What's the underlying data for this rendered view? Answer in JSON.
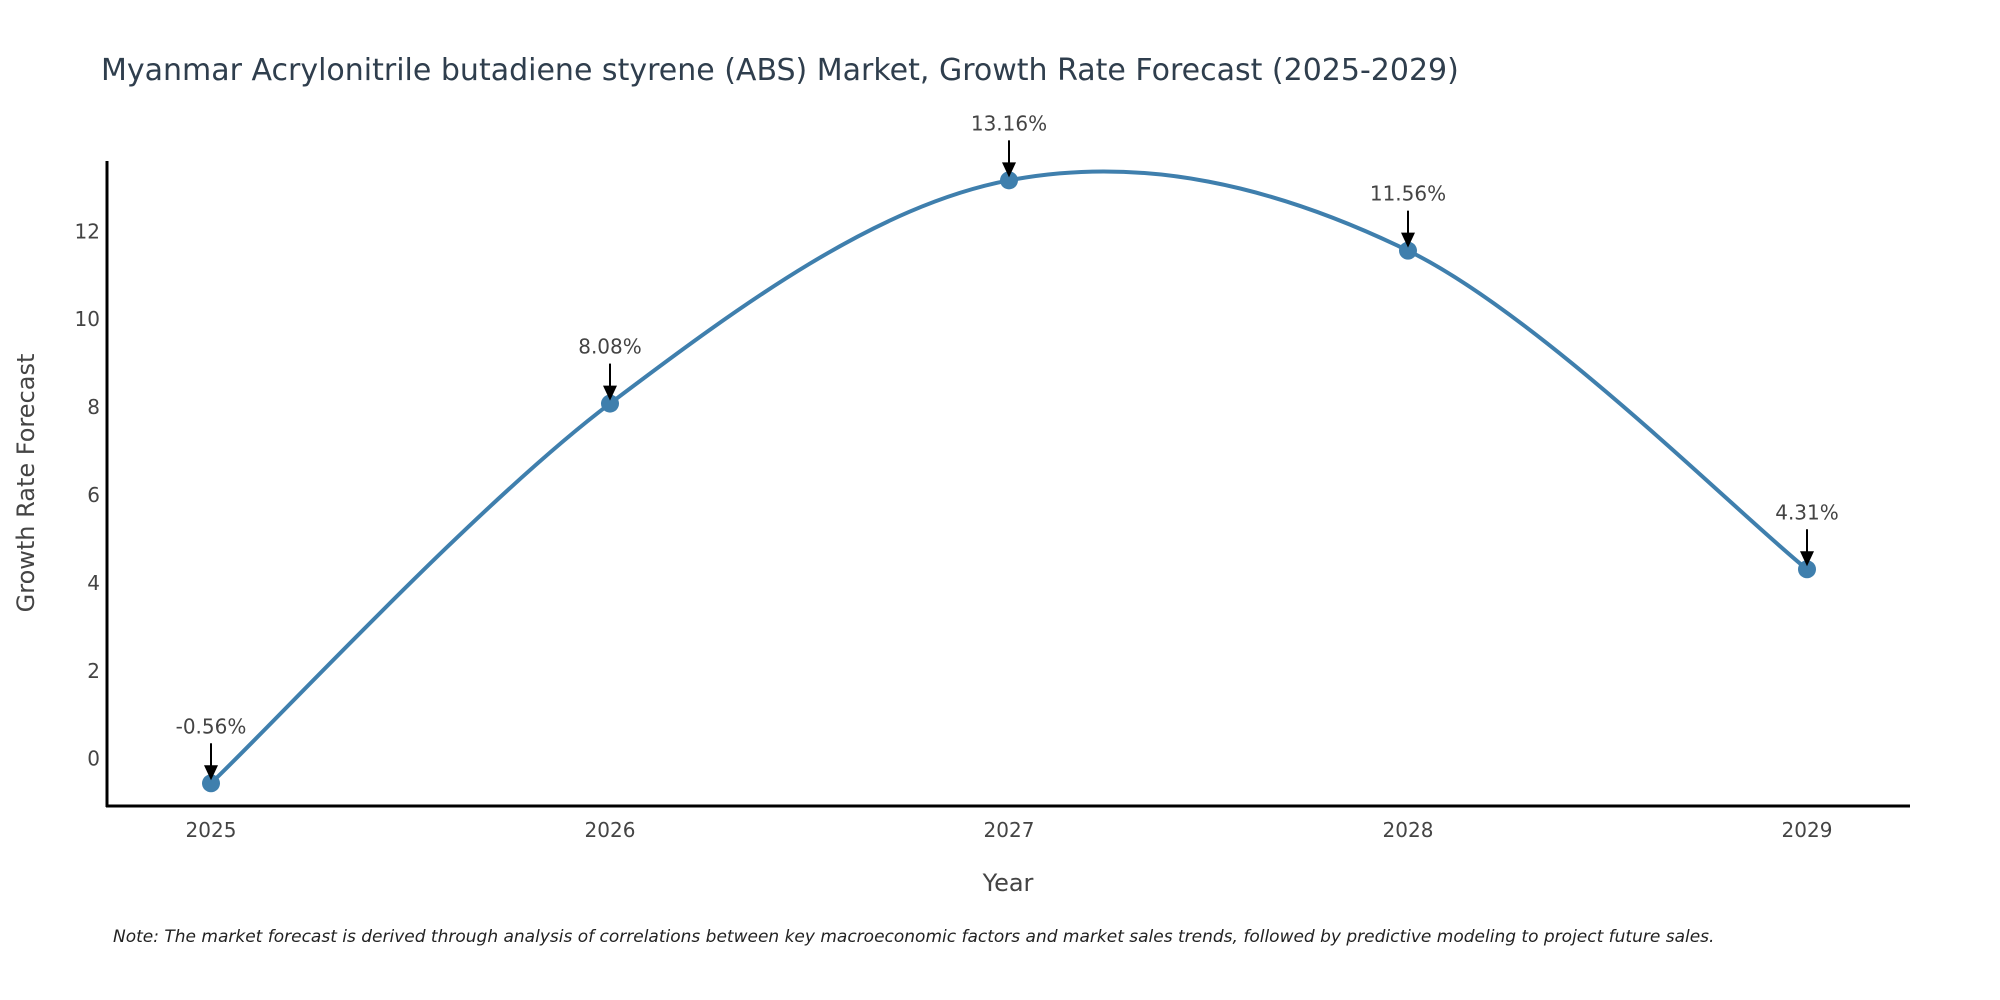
{
  "chart_data": {
    "type": "line",
    "title": "Myanmar Acrylonitrile butadiene styrene (ABS) Market, Growth Rate Forecast (2025-2029)",
    "xlabel": "Year",
    "ylabel": "Growth Rate Forecast",
    "categories": [
      "2025",
      "2026",
      "2027",
      "2028",
      "2029"
    ],
    "values": [
      -0.56,
      8.08,
      13.16,
      11.56,
      4.31
    ],
    "data_labels": [
      "-0.56%",
      "8.08%",
      "13.16%",
      "11.56%",
      "4.31%"
    ],
    "yticks": [
      0,
      2,
      4,
      6,
      8,
      10,
      12
    ],
    "ylim": [
      -1.1,
      13.6
    ],
    "grid": false,
    "smooth": true,
    "line_color": "#3f7fad",
    "marker_color": "#3f7fad",
    "note": "Note: The market forecast is derived through analysis of correlations between key macroeconomic factors and market sales trends, followed by predictive modeling to project future sales."
  }
}
